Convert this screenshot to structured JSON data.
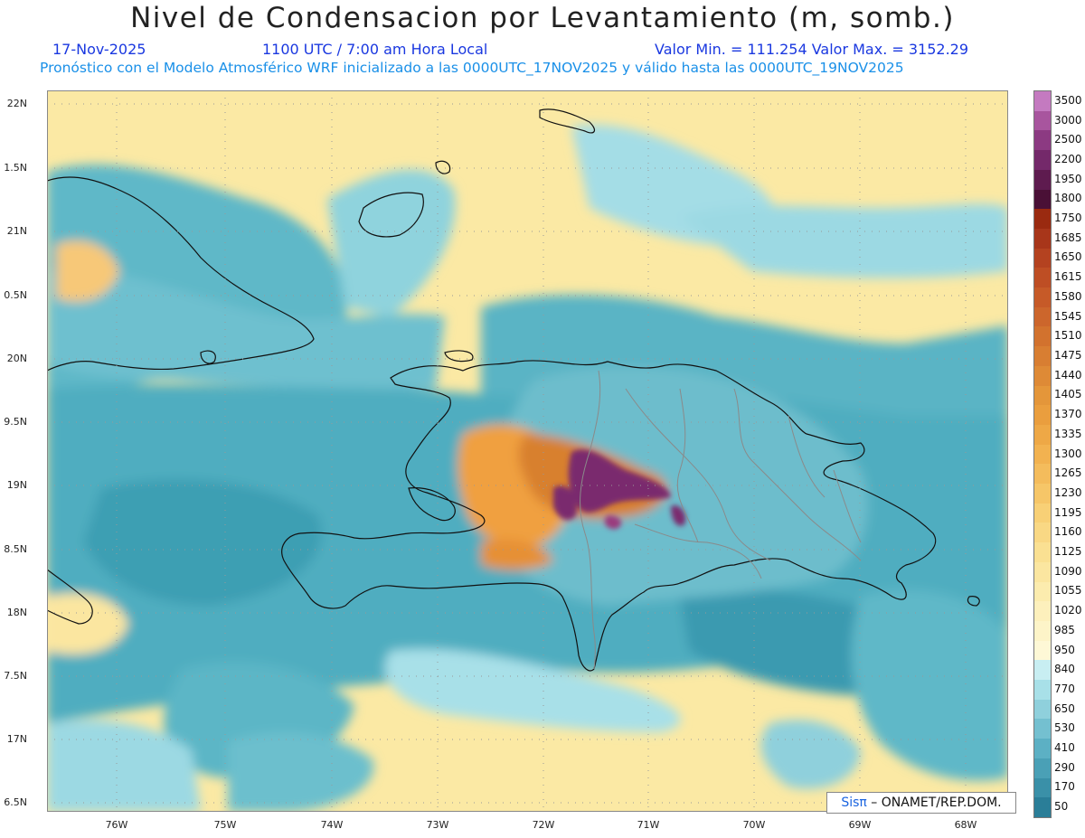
{
  "header": {
    "title": "Nivel de Condensacion por Levantamiento (m, somb.)",
    "date": "17-Nov-2025",
    "time": "1100 UTC / 7:00 am Hora Local",
    "minmax": "Valor Min. = 111.254  Valor Max. = 3152.29",
    "forecast_info": "Pronóstico con el Modelo Atmosférico WRF inicializado a las 0000UTC_17NOV2025 y válido hasta las  0000UTC_19NOV2025"
  },
  "map": {
    "lat_labels": [
      "22N",
      "1.5N",
      "21N",
      "0.5N",
      "20N",
      "9.5N",
      "19N",
      "8.5N",
      "18N",
      "7.5N",
      "17N",
      "6.5N"
    ],
    "lon_labels": [
      "76W",
      "75W",
      "74W",
      "73W",
      "72W",
      "71W",
      "70W",
      "69W",
      "68W"
    ],
    "colors": {
      "ocean_teal": "#4fb3c4",
      "ocean_light": "#a8e0e8",
      "land_yellow": "#fbeaa0",
      "orange": "#f3a64a",
      "brown": "#b95a22",
      "purple": "#7a2b6e"
    }
  },
  "colorbar": {
    "labels": [
      "3500",
      "3000",
      "2500",
      "2200",
      "1950",
      "1800",
      "1750",
      "1685",
      "1650",
      "1615",
      "1580",
      "1545",
      "1510",
      "1475",
      "1440",
      "1405",
      "1370",
      "1335",
      "1300",
      "1265",
      "1230",
      "1195",
      "1160",
      "1125",
      "1090",
      "1055",
      "1020",
      "985",
      "950",
      "840",
      "770",
      "650",
      "530",
      "410",
      "290",
      "170",
      "50"
    ],
    "colors": [
      "#c47ac0",
      "#a8559e",
      "#8c3a82",
      "#74296a",
      "#5e1b4f",
      "#4a1036",
      "#9a2a10",
      "#a8361a",
      "#b44220",
      "#be4e24",
      "#c65a28",
      "#cc662c",
      "#d2722e",
      "#d87e32",
      "#de8a36",
      "#e4963a",
      "#ea9e3e",
      "#eea846",
      "#f2b250",
      "#f4bc5c",
      "#f6c668",
      "#f8d076",
      "#f9d884",
      "#fae092",
      "#fbe6a0",
      "#fcecae",
      "#fdf0bc",
      "#fdf4c8",
      "#fef8d6",
      "#c8eef2",
      "#a8e0e8",
      "#8fd0dc",
      "#74c0d0",
      "#5cb0c4",
      "#4aa0b6",
      "#3a90a8",
      "#2a7e98"
    ]
  },
  "credit": {
    "sis": "Sisπ",
    "rest": " – ONAMET/REP.DOM."
  }
}
